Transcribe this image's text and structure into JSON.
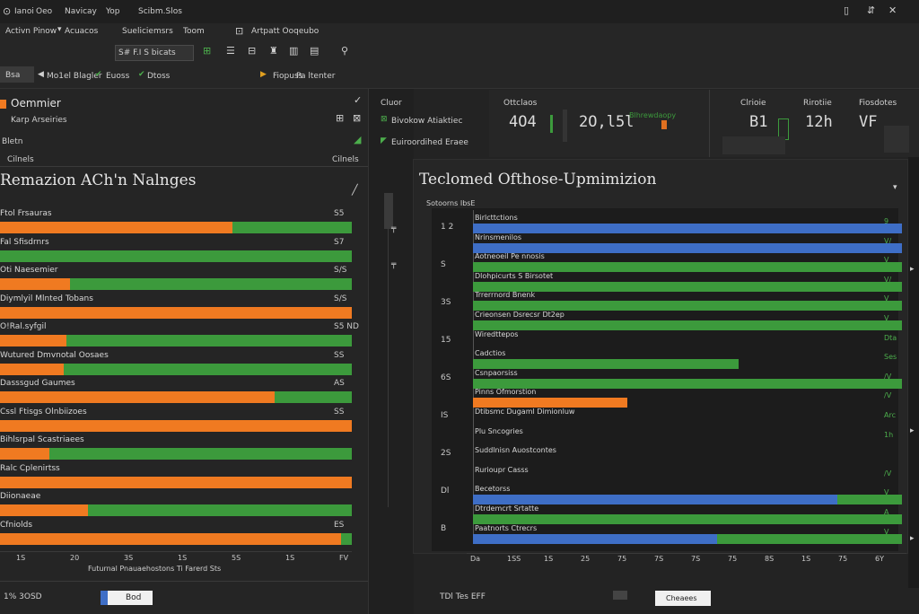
{
  "colors": {
    "orange": "#f07a21",
    "green": "#3c9a3c",
    "blue": "#3e6ec6",
    "bg": "#232323",
    "panel": "#2a2a2a"
  },
  "titlebar": {
    "app": "Ianoi",
    "menu": [
      "Oeo",
      "Navicay",
      "Yop",
      "Scibm.Slos"
    ],
    "min_icon": "minimize-icon",
    "max_icon": "maximize-icon",
    "close_icon": "close-icon"
  },
  "toolbar1": {
    "items": [
      "Activn Pinow",
      "Acuacos",
      "Sueliciemsrs",
      "Toom",
      "Artpatt Ooqeubo"
    ],
    "tab": "S# F.I S bicats"
  },
  "toolbar2": {
    "badge": "Bsa",
    "items": [
      "Mo1el Blagler",
      "Euoss",
      "Dtoss",
      "Fiopuss",
      "Pa ltenter"
    ]
  },
  "left": {
    "title": "Oemmier",
    "subtitle": "Karp Arseiries",
    "meta": "Bletn",
    "meta_val": "Cilnels",
    "chart_title": "Remazion ACh'n Nalnges",
    "axis": [
      "1S",
      "20",
      "3S",
      "1S",
      "5S",
      "1S",
      "FV"
    ],
    "axis_caption": "Futurnal Pnauaehostons Ti Farerd Sts",
    "footer_label": "1% 3OSD",
    "footer_btn": "Bod"
  },
  "middle": {
    "label1": "Cluor",
    "label2": "Bivokow Atiaktiec",
    "label3": "Euiroordihed Eraee",
    "stat1": "4O4",
    "stat1_label": "Ottclaos",
    "stat2": "2O,l5l",
    "stat2_sub": "Blhrewdaopy",
    "footer": "TDl Tes EFF"
  },
  "right": {
    "head": [
      "Clrioie",
      "Rirotiie",
      "Fiosdotes"
    ],
    "stat1": "B1",
    "stat2": "12h",
    "stat3": "VF",
    "chart_title": "Teclomed Ofthose-Upmimizion",
    "sub": "Sotoorns IbsE",
    "axis": [
      "Da",
      "1SS",
      "1S",
      "25",
      "75",
      "7S",
      "7S",
      "75",
      "8S",
      "1S",
      "75",
      "6Y"
    ],
    "footer_btn": "Cheaees"
  },
  "chart_data": [
    {
      "type": "bar",
      "title": "Remazion ACh'n Nalnges",
      "categories": [
        "Ftol Frsauras",
        "Fal Sfisdrnrs",
        "Oti Naesemier",
        "Diymlyil Mlnted Tobans",
        "O!Ral.syfgil",
        "Wutured Dmvnotal Oosaes",
        "Dasssgud Gaumes",
        "Cssl Ftisgs Olnbiizoes",
        "Bihlsrpal Scastriaees",
        "Ralc Cplenirtss",
        "Diionaeae",
        "Cfniolds"
      ],
      "series": [
        {
          "name": "orange",
          "values": [
            66,
            0,
            20,
            100,
            19,
            18,
            78,
            100,
            14,
            100,
            25,
            97
          ]
        },
        {
          "name": "green",
          "values": [
            34,
            100,
            80,
            0,
            81,
            82,
            22,
            0,
            86,
            0,
            75,
            3
          ]
        }
      ],
      "value_labels": [
        "S5",
        "S7",
        "S/S",
        "S/S",
        "S5 ND",
        "SS",
        "AS",
        "SS",
        "",
        "",
        "",
        "ES"
      ]
    },
    {
      "type": "bar",
      "title": "Teclomed Ofthose-Upmimizion",
      "categories": [
        "Birlcttctions",
        "Nrinsmenilos",
        "Aotneoeil Pe nnosis",
        "Dlohpicurts S Birsotet",
        "Trrerrnord Bnenk",
        "Crieonsen Dsrecsr Dt2ep",
        "Wiredttepos",
        "Cadctios",
        "Csnpaorsiss",
        "Pinns Ofmorstion",
        "Dtibsmc Dugaml Dimionluw",
        "Plu Sncogries",
        "Suddlnisn Auostcontes",
        "Rurioupr Casss",
        "Becetorss",
        "Dtrdemcrt Srtatte",
        "Paatnorts Ctrecrs"
      ],
      "series": [
        {
          "name": "blue",
          "values": [
            100,
            100,
            0,
            0,
            0,
            0,
            0,
            0,
            0,
            0,
            0,
            0,
            0,
            0,
            85,
            0,
            57
          ]
        },
        {
          "name": "green",
          "values": [
            0,
            0,
            100,
            100,
            100,
            100,
            0,
            62,
            100,
            0,
            0,
            0,
            0,
            0,
            15,
            100,
            43
          ]
        },
        {
          "name": "orange",
          "values": [
            0,
            0,
            0,
            0,
            0,
            0,
            0,
            0,
            0,
            36,
            0,
            0,
            0,
            0,
            0,
            0,
            0
          ]
        }
      ],
      "value_labels": [
        "9",
        "V/",
        "V",
        "V/",
        "V",
        "V",
        "Dta",
        "Ses",
        "/V",
        "/V",
        "Arc",
        "1h",
        "",
        "/V",
        "V",
        "A",
        "V"
      ]
    }
  ]
}
